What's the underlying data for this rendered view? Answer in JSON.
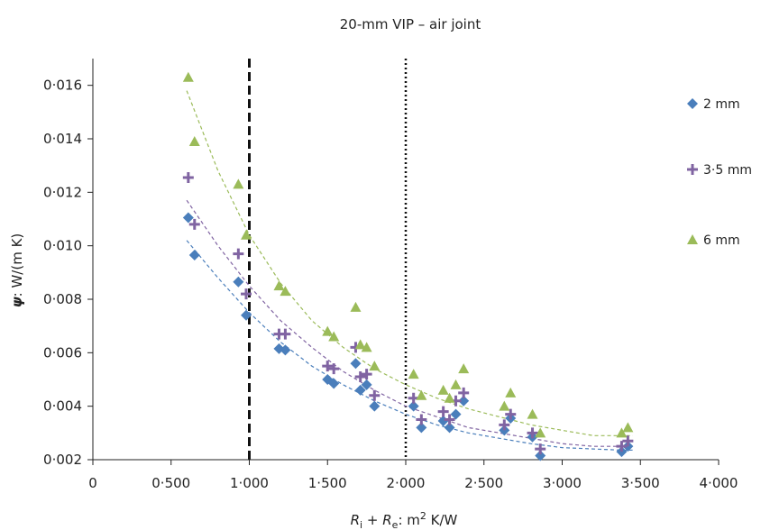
{
  "chart_data": {
    "type": "scatter",
    "title": "20-mm VIP – air joint",
    "xlabel": {
      "r": "R",
      "i": "i",
      "plus": " + ",
      "re": "R",
      "e": "e",
      "unit": ": m",
      "sq": "2",
      "tail": " K/W"
    },
    "ylabel": {
      "psi": "ψ",
      "unit": ": W/(m K)"
    },
    "xlim": [
      0,
      4
    ],
    "ylim": [
      0.002,
      0.017
    ],
    "x_ticks": [
      0,
      0.5,
      1,
      1.5,
      2,
      2.5,
      3,
      3.5,
      4
    ],
    "x_tick_labels": [
      "0",
      "0·500",
      "1·000",
      "1·500",
      "2·000",
      "2·500",
      "3·000",
      "3·500",
      "4·000"
    ],
    "y_ticks": [
      0.002,
      0.004,
      0.006,
      0.008,
      0.01,
      0.012,
      0.014,
      0.016
    ],
    "y_tick_labels": [
      "0·002",
      "0·004",
      "0·006",
      "0·008",
      "0·010",
      "0·012",
      "0·014",
      "0·016"
    ],
    "vlines": [
      {
        "x": 1.0,
        "style": "dashed"
      },
      {
        "x": 2.0,
        "style": "dotted"
      }
    ],
    "legend_position": "right",
    "series": [
      {
        "name": "2 mm",
        "marker": "diamond",
        "color": "#4a7ebb",
        "x": [
          0.61,
          0.65,
          0.93,
          0.98,
          1.19,
          1.23,
          1.5,
          1.54,
          1.68,
          1.71,
          1.75,
          1.8,
          2.05,
          2.1,
          2.24,
          2.28,
          2.32,
          2.37,
          2.63,
          2.67,
          2.81,
          2.86,
          3.38,
          3.42
        ],
        "y": [
          0.01105,
          0.00965,
          0.00865,
          0.0074,
          0.00615,
          0.0061,
          0.005,
          0.00485,
          0.0056,
          0.0046,
          0.0048,
          0.004,
          0.004,
          0.0032,
          0.00345,
          0.0032,
          0.0037,
          0.0042,
          0.0031,
          0.00355,
          0.00285,
          0.00215,
          0.0023,
          0.0025
        ]
      },
      {
        "name": "3·5 mm",
        "marker": "plus",
        "color": "#8064a2",
        "x": [
          0.61,
          0.65,
          0.93,
          0.98,
          1.19,
          1.23,
          1.5,
          1.54,
          1.68,
          1.71,
          1.75,
          1.8,
          2.05,
          2.1,
          2.24,
          2.28,
          2.32,
          2.37,
          2.63,
          2.67,
          2.81,
          2.86,
          3.38,
          3.42
        ],
        "y": [
          0.01255,
          0.0108,
          0.0097,
          0.0082,
          0.0067,
          0.0067,
          0.0055,
          0.0054,
          0.0062,
          0.0051,
          0.0052,
          0.0044,
          0.0043,
          0.0035,
          0.0038,
          0.0035,
          0.0042,
          0.0045,
          0.0033,
          0.0037,
          0.003,
          0.0024,
          0.0025,
          0.0027
        ]
      },
      {
        "name": "6 mm",
        "marker": "triangle",
        "color": "#9bbb59",
        "x": [
          0.61,
          0.65,
          0.93,
          0.98,
          1.19,
          1.23,
          1.5,
          1.54,
          1.68,
          1.71,
          1.75,
          1.8,
          2.05,
          2.1,
          2.24,
          2.28,
          2.32,
          2.37,
          2.63,
          2.67,
          2.81,
          2.86,
          3.38,
          3.42
        ],
        "y": [
          0.0163,
          0.0139,
          0.0123,
          0.0104,
          0.0085,
          0.0083,
          0.0068,
          0.0066,
          0.0077,
          0.0063,
          0.0062,
          0.0055,
          0.0052,
          0.0044,
          0.0046,
          0.0043,
          0.0048,
          0.0054,
          0.004,
          0.0045,
          0.0037,
          0.003,
          0.003,
          0.0032
        ]
      }
    ],
    "trendlines": [
      {
        "series": "2 mm",
        "style": "dashed",
        "x": [
          0.6,
          0.8,
          1.0,
          1.2,
          1.4,
          1.6,
          1.8,
          2.0,
          2.2,
          2.4,
          2.6,
          2.8,
          3.0,
          3.2,
          3.4,
          3.45
        ],
        "y": [
          0.0102,
          0.0088,
          0.0075,
          0.0064,
          0.0055,
          0.0048,
          0.0042,
          0.0037,
          0.0033,
          0.003,
          0.0028,
          0.0026,
          0.00245,
          0.0024,
          0.00235,
          0.00236
        ]
      },
      {
        "series": "3·5 mm",
        "style": "dashed",
        "x": [
          0.6,
          0.8,
          1.0,
          1.2,
          1.4,
          1.6,
          1.8,
          2.0,
          2.2,
          2.4,
          2.6,
          2.8,
          3.0,
          3.2,
          3.4,
          3.45
        ],
        "y": [
          0.0117,
          0.01,
          0.0085,
          0.0072,
          0.0062,
          0.0053,
          0.0046,
          0.004,
          0.0036,
          0.0032,
          0.003,
          0.0028,
          0.0026,
          0.0025,
          0.0025,
          0.0025
        ]
      },
      {
        "series": "6 mm",
        "style": "dashed",
        "x": [
          0.6,
          0.8,
          1.0,
          1.2,
          1.4,
          1.6,
          1.8,
          2.0,
          2.2,
          2.4,
          2.6,
          2.8,
          3.0,
          3.2,
          3.4,
          3.45
        ],
        "y": [
          0.0158,
          0.0128,
          0.0104,
          0.0086,
          0.0072,
          0.0062,
          0.0054,
          0.0048,
          0.0043,
          0.0039,
          0.0036,
          0.0033,
          0.0031,
          0.0029,
          0.0029,
          0.0029
        ]
      }
    ]
  }
}
